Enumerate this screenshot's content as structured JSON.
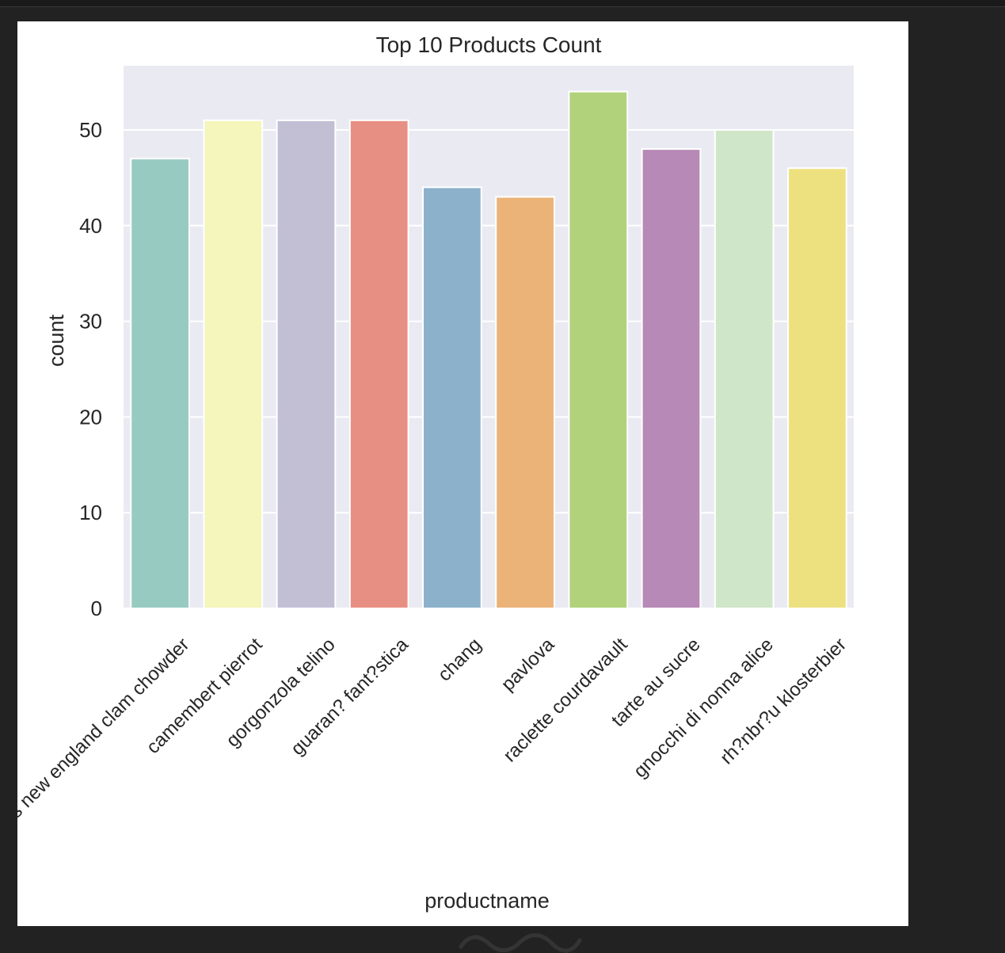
{
  "chart_data": {
    "type": "bar",
    "title": "Top 10 Products Count",
    "xlabel": "productname",
    "ylabel": "count",
    "categories": [
      "jack's new england clam chowder",
      "camembert pierrot",
      "gorgonzola telino",
      "guaran? fant?stica",
      "chang",
      "pavlova",
      "raclette courdavault",
      "tarte au sucre",
      "gnocchi di nonna alice",
      "rh?nbr?u klosterbier"
    ],
    "values": [
      47,
      51,
      51,
      51,
      44,
      43,
      54,
      48,
      50,
      46
    ],
    "colors": [
      "#97cbc1",
      "#f4f6bb",
      "#c2bfd5",
      "#e88f83",
      "#8bb1cb",
      "#ebb377",
      "#b1d17b",
      "#b789b6",
      "#d0e6c8",
      "#ede07f"
    ],
    "ylim": [
      0,
      56.7
    ],
    "yticks": [
      0,
      10,
      20,
      30,
      40,
      50
    ],
    "grid": true,
    "background": "#eaeaf2"
  }
}
